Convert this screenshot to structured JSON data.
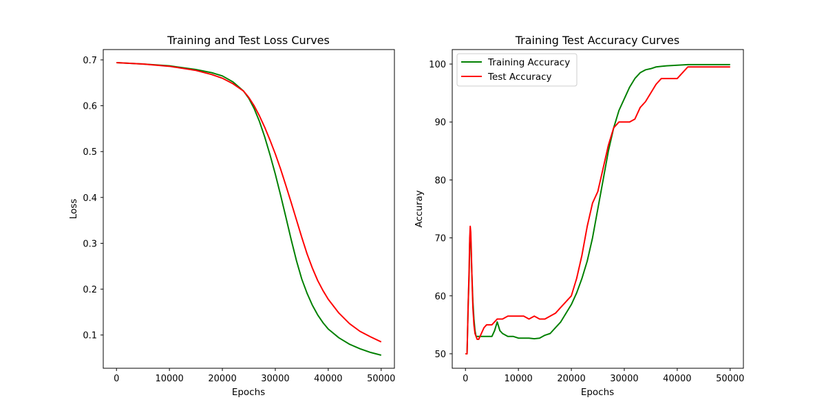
{
  "chart_data": [
    {
      "type": "line",
      "title": "Training and Test Loss Curves",
      "xlabel": "Epochs",
      "ylabel": "Loss",
      "xlim": [
        -2500,
        52500
      ],
      "ylim": [
        0.0275,
        0.7225
      ],
      "x_ticks": [
        0,
        10000,
        20000,
        30000,
        40000,
        50000
      ],
      "y_ticks": [
        0.1,
        0.2,
        0.3,
        0.4,
        0.5,
        0.6,
        0.7
      ],
      "grid": false,
      "legend": null,
      "series": [
        {
          "color": "#008000",
          "x": [
            0,
            5000,
            10000,
            15000,
            18000,
            20000,
            22000,
            24000,
            25000,
            26000,
            27000,
            28000,
            29000,
            30000,
            31000,
            32000,
            33000,
            34000,
            35000,
            36000,
            37000,
            38000,
            39000,
            40000,
            42000,
            44000,
            46000,
            48000,
            50000
          ],
          "y": [
            0.694,
            0.691,
            0.687,
            0.679,
            0.672,
            0.665,
            0.652,
            0.632,
            0.616,
            0.594,
            0.566,
            0.532,
            0.493,
            0.451,
            0.405,
            0.357,
            0.308,
            0.262,
            0.222,
            0.191,
            0.165,
            0.144,
            0.127,
            0.113,
            0.094,
            0.08,
            0.07,
            0.062,
            0.056
          ]
        },
        {
          "color": "#ff0000",
          "x": [
            0,
            5000,
            10000,
            15000,
            18000,
            20000,
            22000,
            24000,
            25000,
            26000,
            27000,
            28000,
            29000,
            30000,
            31000,
            32000,
            33000,
            34000,
            35000,
            36000,
            37000,
            38000,
            39000,
            40000,
            42000,
            44000,
            46000,
            48000,
            50000
          ],
          "y": [
            0.694,
            0.691,
            0.686,
            0.677,
            0.668,
            0.66,
            0.648,
            0.632,
            0.618,
            0.6,
            0.578,
            0.553,
            0.525,
            0.495,
            0.462,
            0.426,
            0.389,
            0.351,
            0.313,
            0.277,
            0.246,
            0.219,
            0.197,
            0.178,
            0.148,
            0.125,
            0.108,
            0.096,
            0.085
          ]
        }
      ]
    },
    {
      "type": "line",
      "title": "Training Test Accuracy Curves",
      "xlabel": "Epochs",
      "ylabel": "Accuray",
      "xlim": [
        -2500,
        52500
      ],
      "ylim": [
        47.5,
        102.5
      ],
      "x_ticks": [
        0,
        10000,
        20000,
        30000,
        40000,
        50000
      ],
      "y_ticks": [
        50,
        60,
        70,
        80,
        90,
        100
      ],
      "grid": false,
      "legend": "top-left",
      "series": [
        {
          "name": "Training Accuracy",
          "color": "#008000",
          "x": [
            0,
            300,
            500,
            700,
            800,
            900,
            1000,
            1100,
            1200,
            1400,
            1600,
            1800,
            2000,
            2500,
            3000,
            4000,
            5000,
            5500,
            6000,
            6500,
            7000,
            8000,
            9000,
            10000,
            11000,
            12000,
            13000,
            14000,
            15000,
            16000,
            17000,
            18000,
            19000,
            20000,
            21000,
            22000,
            23000,
            24000,
            25000,
            26000,
            27000,
            28000,
            29000,
            30000,
            31000,
            32000,
            33000,
            34000,
            35000,
            36000,
            37000,
            38000,
            40000,
            42000,
            44000,
            46000,
            48000,
            50000
          ],
          "y": [
            50,
            50,
            58,
            64,
            69,
            71,
            70,
            67,
            64,
            59,
            56,
            54,
            53,
            53,
            53,
            53,
            53,
            54,
            55.5,
            54,
            53.5,
            53,
            53,
            52.7,
            52.7,
            52.7,
            52.6,
            52.7,
            53.2,
            53.5,
            54.5,
            55.5,
            57,
            58.5,
            60.5,
            63,
            66,
            70,
            75,
            80,
            85,
            89,
            92,
            94,
            96,
            97.5,
            98.5,
            99,
            99.2,
            99.5,
            99.6,
            99.7,
            99.8,
            99.9,
            99.9,
            99.9,
            99.9,
            99.9
          ]
        },
        {
          "name": "Test Accuracy",
          "color": "#ff0000",
          "x": [
            0,
            300,
            500,
            700,
            800,
            900,
            1000,
            1100,
            1200,
            1400,
            1600,
            1800,
            2000,
            2200,
            2500,
            3000,
            3500,
            4000,
            5000,
            6000,
            7000,
            8000,
            9000,
            10000,
            11000,
            12000,
            13000,
            14000,
            15000,
            16000,
            17000,
            18000,
            19000,
            20000,
            21000,
            22000,
            23000,
            24000,
            25000,
            26000,
            27000,
            28000,
            29000,
            30000,
            31000,
            32000,
            33000,
            34000,
            35000,
            36000,
            37000,
            38000,
            39000,
            40000,
            41000,
            42000,
            44000,
            46000,
            48000,
            50000
          ],
          "y": [
            50,
            50,
            58,
            65,
            70,
            72,
            71,
            68,
            64,
            58,
            55,
            53.5,
            53,
            52.5,
            52.5,
            53.5,
            54.5,
            55,
            55,
            56,
            56,
            56.5,
            56.5,
            56.5,
            56.5,
            56,
            56.5,
            56,
            56,
            56.5,
            57,
            58,
            59,
            60,
            63,
            67,
            72,
            76,
            78,
            82,
            86,
            89,
            90,
            90,
            90,
            90.5,
            92.5,
            93.5,
            95,
            96.5,
            97.5,
            97.5,
            97.5,
            97.5,
            98.5,
            99.5,
            99.5,
            99.5,
            99.5,
            99.5
          ]
        }
      ]
    }
  ]
}
